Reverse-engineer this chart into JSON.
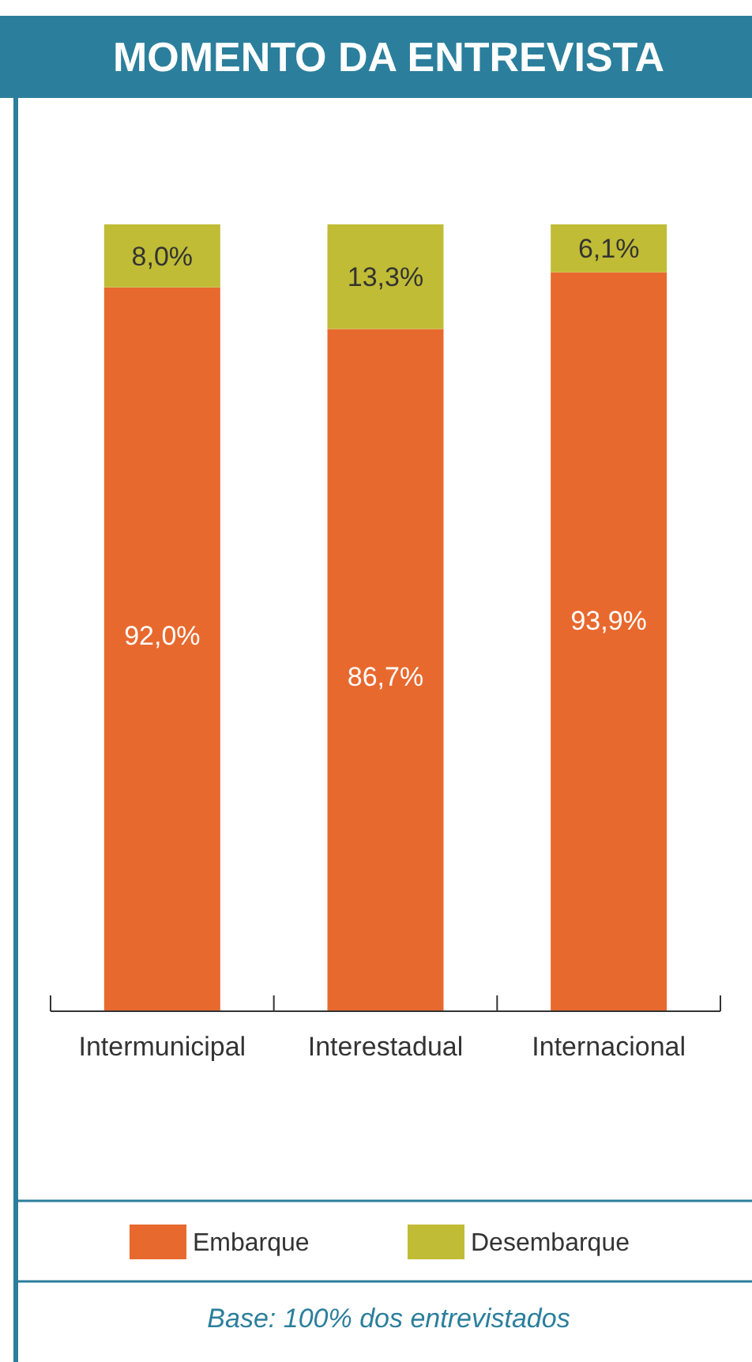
{
  "chart_data": {
    "type": "bar",
    "title": "MOMENTO DA ENTREVISTA",
    "categories": [
      "Intermunicipal",
      "Interestadual",
      "Internacional"
    ],
    "stacked": true,
    "ylim": [
      0,
      100
    ],
    "legend": "bottom",
    "annotations": [
      "Base: 100% dos entrevistados"
    ],
    "series": [
      {
        "name": "Embarque",
        "color": "#e8692e",
        "values": [
          92.0,
          86.7,
          93.9
        ],
        "value_labels": [
          "92,0%",
          "86,7%",
          "93,9%"
        ]
      },
      {
        "name": "Desembarque",
        "color": "#c0bc35",
        "values": [
          8.0,
          13.3,
          6.1
        ],
        "value_labels": [
          "8,0%",
          "13,3%",
          "6,1%"
        ]
      }
    ]
  }
}
